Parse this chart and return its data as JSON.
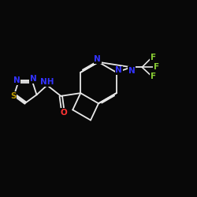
{
  "background_color": "#080808",
  "bond_color": "#e8e8e8",
  "atom_colors": {
    "N": "#3333ff",
    "O": "#ff3333",
    "S": "#bb9900",
    "F": "#88cc33",
    "C": "#e8e8e8",
    "H": "#e8e8e8"
  },
  "figsize": [
    2.5,
    2.5
  ],
  "dpi": 100,
  "lw": 1.3,
  "fs": 7.5
}
